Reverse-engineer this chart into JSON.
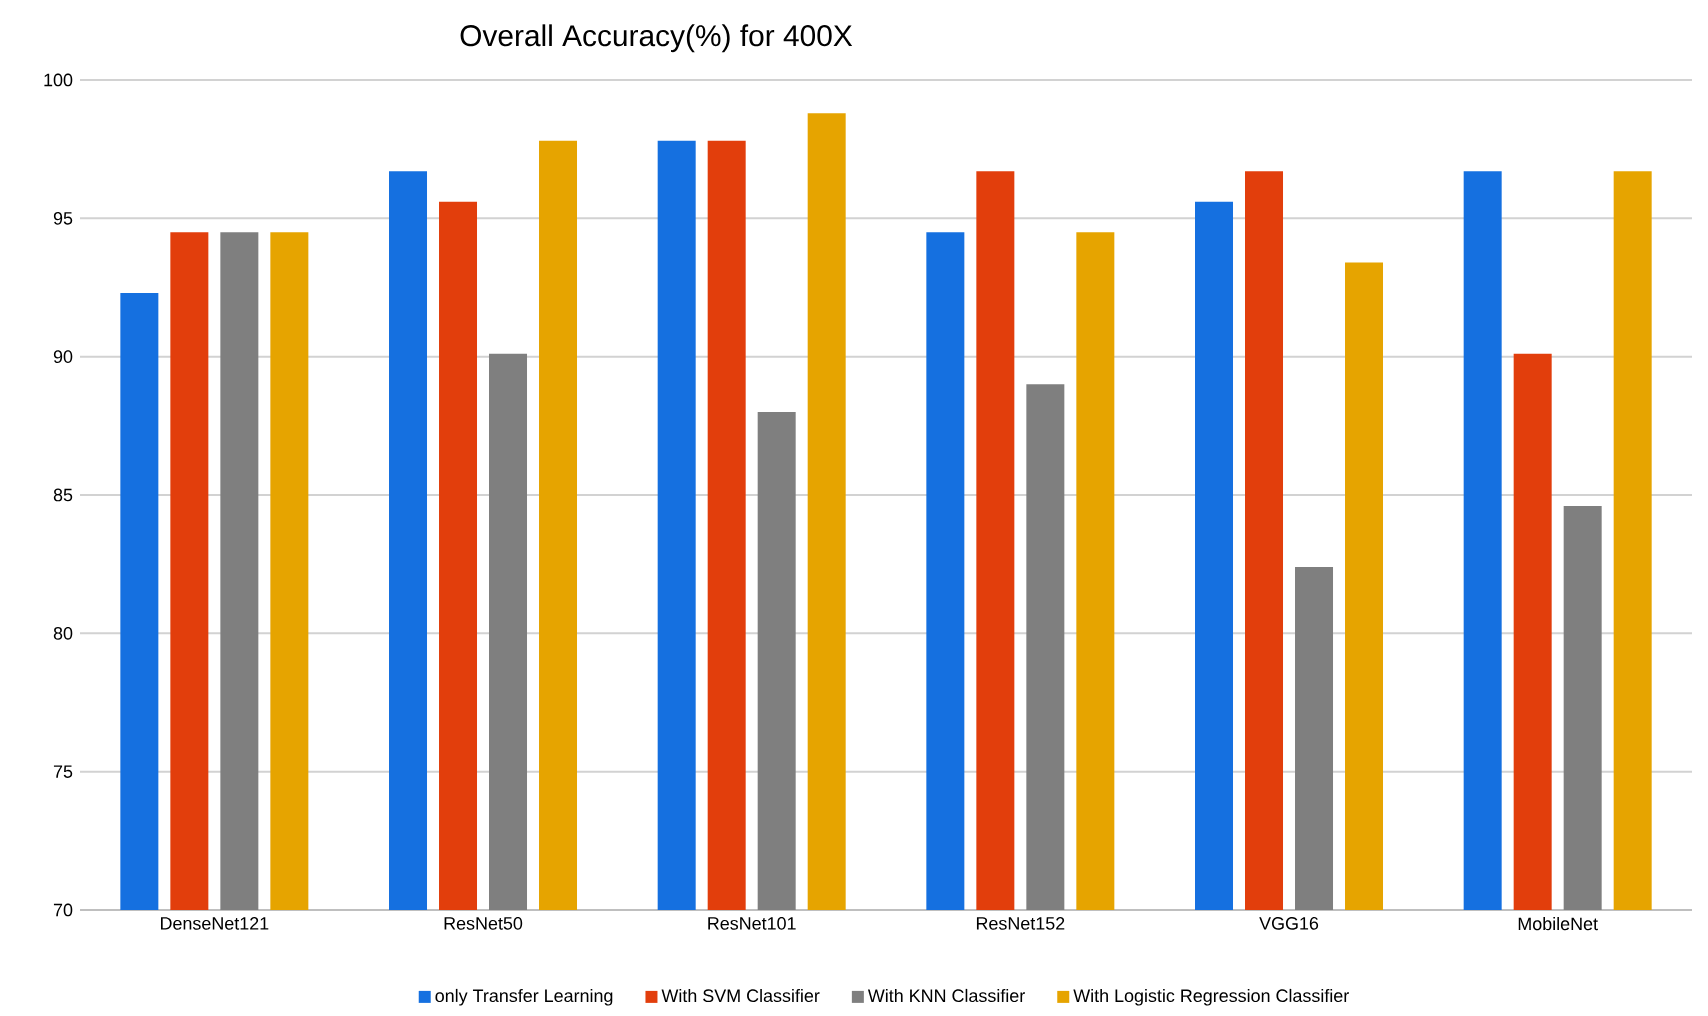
{
  "chart_data": {
    "type": "bar",
    "title": "Overall Accuracy(%) for 400X",
    "categories": [
      "DenseNet121",
      "ResNet50",
      "ResNet101",
      "ResNet152",
      "VGG16",
      "MobileNet"
    ],
    "series": [
      {
        "name": "only Transfer Learning",
        "color": "#1570e0",
        "values": [
          92.3,
          96.7,
          97.8,
          94.5,
          95.6,
          96.7
        ]
      },
      {
        "name": "With SVM Classifier",
        "color": "#e23e0c",
        "values": [
          94.5,
          95.6,
          97.8,
          96.7,
          96.7,
          90.1
        ]
      },
      {
        "name": "With KNN Classifier",
        "color": "#7f7f7f",
        "values": [
          94.5,
          90.1,
          88.0,
          89.0,
          82.4,
          84.6
        ]
      },
      {
        "name": "With Logistic Regression Classifier",
        "color": "#e6a400",
        "values": [
          94.5,
          97.8,
          98.8,
          94.5,
          93.4,
          96.7
        ]
      }
    ],
    "ylim": [
      70,
      100
    ],
    "yticks": [
      70,
      75,
      80,
      85,
      90,
      95,
      100
    ],
    "grid": "y",
    "legend": "bottom"
  }
}
